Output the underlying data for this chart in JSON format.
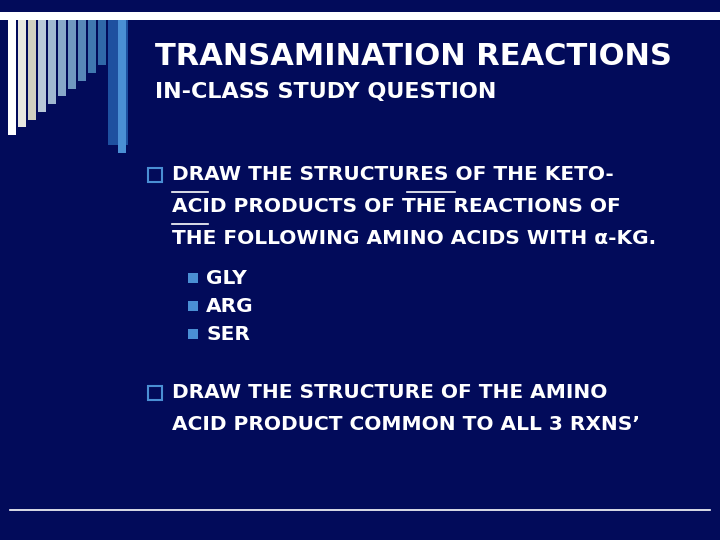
{
  "background_color": "#020B5A",
  "title_line1": "TRANSAMINATION REACTIONS",
  "title_line2": "IN-CLASS STUDY QUESTION",
  "title_color": "#FFFFFF",
  "title_fontsize": 22,
  "subtitle_fontsize": 16,
  "body_fontsize": 14.5,
  "sub_bullet_fontsize": 14.5,
  "text_color": "#FFFFFF",
  "bullet_sq_color": "#4A8FD4",
  "sub_bullet_color": "#4A8FD4",
  "bullet1_line1": "DRAW THE STRUCTURES OF THE KETO-",
  "bullet1_line2": "ACID PRODUCTS OF THE REACTIONS OF",
  "bullet1_line3": "THE FOLLOWING AMINO ACIDS WITH α-KG.",
  "sub_bullets": [
    "GLY",
    "ARG",
    "SER"
  ],
  "bullet2_line1": "DRAW THE STRUCTURE OF THE AMINO",
  "bullet2_line2": "ACID PRODUCT COMMON TO ALL 3 RXNS’",
  "divider_color": "#FFFFFF",
  "header_bar_color": "#FFFFFF",
  "stripe_colors": [
    "#FFFFFF",
    "#E8E8E0",
    "#D0D0C0",
    "#B8C8D8",
    "#A0B8D0",
    "#88A8C8",
    "#7098C0",
    "#5888B8",
    "#4078B0",
    "#3068A8",
    "#2858A0",
    "#4A7EC4"
  ],
  "left_dark_stripe": "#1A3A8A"
}
